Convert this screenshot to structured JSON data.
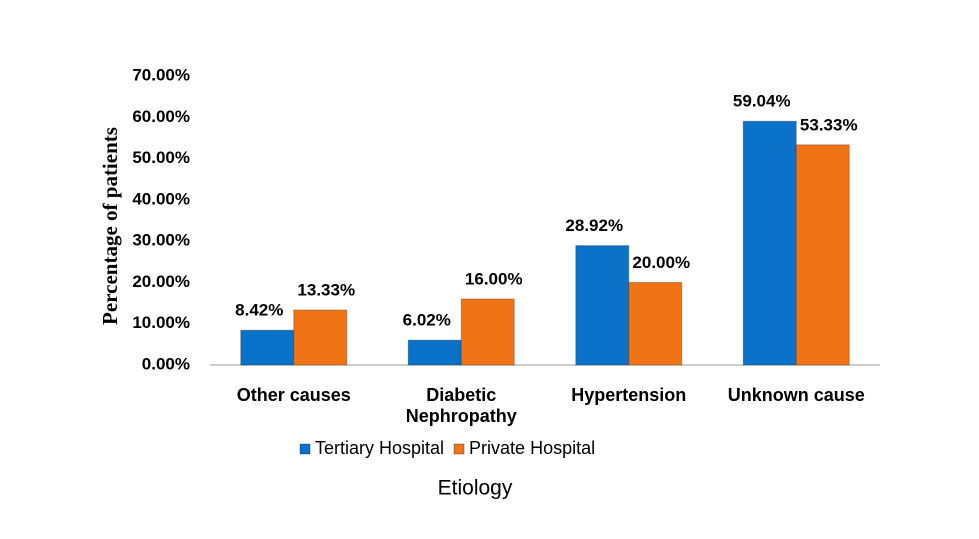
{
  "chart_data": {
    "type": "bar",
    "y_label": "Percentage of patients",
    "x_label": "Etiology",
    "categories": [
      "Other causes",
      "Diabetic Nephropathy",
      "Hypertension",
      "Unknown cause"
    ],
    "series": [
      {
        "name": "Tertiary Hospital",
        "color": "#0a72c8",
        "values": [
          8.42,
          6.02,
          28.92,
          59.04
        ],
        "value_labels": [
          "8.42%",
          "6.02%",
          "28.92%",
          "59.04%"
        ]
      },
      {
        "name": "Private Hospital",
        "color": "#f07416",
        "values": [
          13.33,
          16.0,
          20.0,
          53.33
        ],
        "value_labels": [
          "13.33%",
          "16.00%",
          "20.00%",
          "53.33%"
        ]
      }
    ],
    "ylim": [
      0,
      70
    ],
    "yticks": [
      {
        "value": 0,
        "label": "0.00%"
      },
      {
        "value": 10,
        "label": "10.00%"
      },
      {
        "value": 20,
        "label": "20.00%"
      },
      {
        "value": 30,
        "label": "30.00%"
      },
      {
        "value": 40,
        "label": "40.00%"
      },
      {
        "value": 50,
        "label": "50.00%"
      },
      {
        "value": 60,
        "label": "60.00%"
      },
      {
        "value": 70,
        "label": "70.00%"
      }
    ],
    "grid": false,
    "legend": "bottom"
  }
}
